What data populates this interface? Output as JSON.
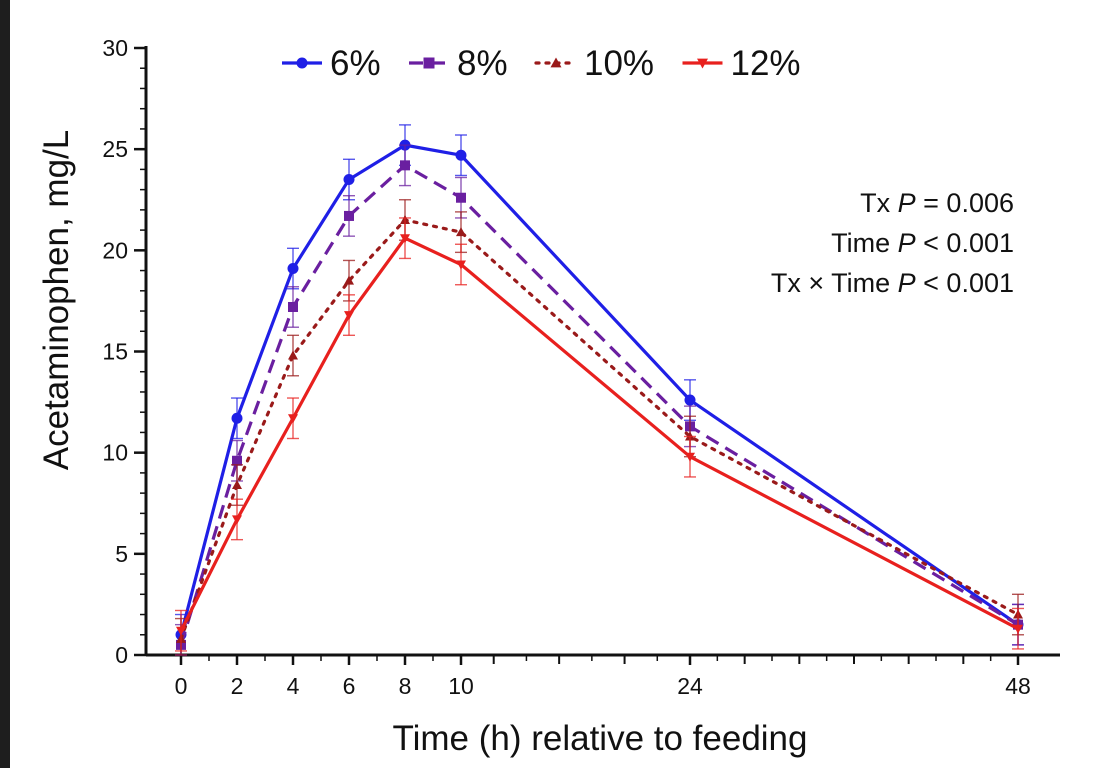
{
  "chart_data": {
    "type": "line",
    "xlabel": "Time (h) relative to feeding",
    "ylabel": "Acetaminophen, mg/L",
    "ylim": [
      0,
      30
    ],
    "yticks": [
      0,
      5,
      10,
      15,
      20,
      25,
      30
    ],
    "xticks": [
      0,
      2,
      4,
      6,
      8,
      10,
      24,
      48
    ],
    "x_axis_break": "nonlinear spacing between 10 and 24 and between 24 and 48",
    "grid": false,
    "legend_position": "top",
    "annotations": [
      {
        "prefix": "Tx ",
        "italic": "P",
        "suffix": " = 0.006"
      },
      {
        "prefix": "Time ",
        "italic": "P",
        "suffix": " < 0.001"
      },
      {
        "prefix": "Tx × Time ",
        "italic": "P",
        "suffix": " < 0.001"
      }
    ],
    "x": [
      0,
      2,
      4,
      6,
      8,
      10,
      24,
      48
    ],
    "series": [
      {
        "name": "6%",
        "color": "#1f1fe6",
        "marker": "circle",
        "dash": "solid",
        "values": [
          1.0,
          11.7,
          19.1,
          23.5,
          25.2,
          24.7,
          12.6,
          1.5
        ],
        "errors": [
          1.0,
          1.0,
          1.0,
          1.0,
          1.0,
          1.0,
          1.0,
          1.0
        ]
      },
      {
        "name": "8%",
        "color": "#6a1fa0",
        "marker": "square",
        "dash": "dashed",
        "values": [
          0.5,
          9.6,
          17.2,
          21.7,
          24.2,
          22.6,
          11.3,
          1.5
        ],
        "errors": [
          1.0,
          1.0,
          1.0,
          1.0,
          1.0,
          1.0,
          1.0,
          1.0
        ]
      },
      {
        "name": "10%",
        "color": "#9a1a1a",
        "marker": "triangle",
        "dash": "dotted",
        "values": [
          0.8,
          8.4,
          14.8,
          18.5,
          21.5,
          20.9,
          10.8,
          2.0
        ],
        "errors": [
          1.0,
          1.0,
          1.0,
          1.0,
          1.0,
          1.0,
          1.0,
          1.0
        ]
      },
      {
        "name": "12%",
        "color": "#e8201e",
        "marker": "triangle-down",
        "dash": "solid",
        "values": [
          1.2,
          6.7,
          11.7,
          16.8,
          20.6,
          19.3,
          9.8,
          1.3
        ],
        "errors": [
          1.0,
          1.0,
          1.0,
          1.0,
          1.0,
          1.0,
          1.0,
          1.0
        ]
      }
    ]
  }
}
